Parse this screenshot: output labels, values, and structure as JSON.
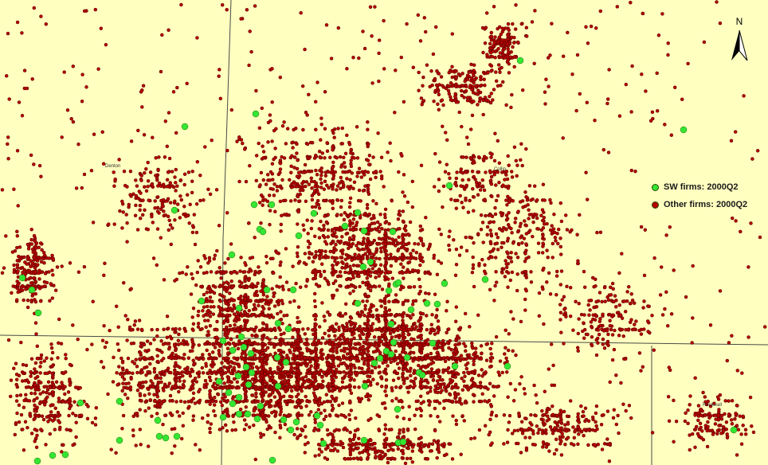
{
  "map": {
    "background_color": "#ffffc0",
    "boundary_color": "#4a4a4a",
    "county_labels": [
      "Denton",
      "Collin",
      "Rockwall"
    ],
    "legend": [
      {
        "label": "SW firms: 2000Q2",
        "color": "#33e633"
      },
      {
        "label": "Other firms: 2000Q2",
        "color": "#b30000"
      }
    ],
    "north_arrow": {
      "letter": "N",
      "icon": "north-arrow-icon"
    }
  }
}
